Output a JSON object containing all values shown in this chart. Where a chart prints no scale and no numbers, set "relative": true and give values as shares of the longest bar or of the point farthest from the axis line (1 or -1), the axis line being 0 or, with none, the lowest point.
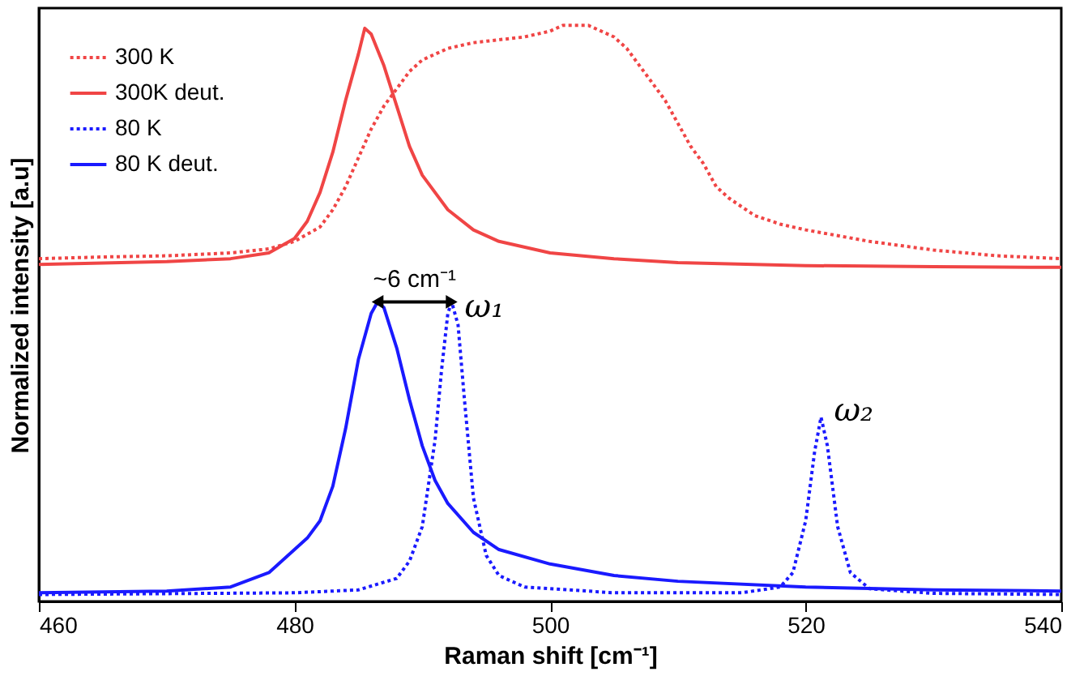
{
  "chart_data": {
    "type": "line",
    "relative": true,
    "xlabel": "Raman shift [cm⁻¹]",
    "ylabel": "Normalized intensity [a.u]",
    "xlim": [
      460,
      540
    ],
    "xticks": [
      460,
      480,
      500,
      520,
      540
    ],
    "grid": false,
    "legend": "top left",
    "marker": "none",
    "annotations": [
      "~6 cm⁻¹",
      {
        "text": "ω₁",
        "x": 492.3,
        "y": 0.5
      },
      {
        "text": "ω₂",
        "x": 521.2,
        "y": 0.32
      }
    ],
    "series": [
      {
        "name": "300 K",
        "color": "#f04545",
        "line_style": "dotted",
        "x": [
          460,
          465,
          470,
          475,
          478,
          480,
          482,
          483,
          484,
          485,
          486,
          487,
          488,
          489,
          490,
          492,
          494,
          496,
          498,
          500,
          501,
          503,
          505,
          506,
          507,
          508,
          509,
          510,
          511,
          512,
          513,
          514,
          516,
          518,
          520,
          525,
          530,
          535,
          540
        ],
        "values": [
          0.595,
          0.598,
          0.6,
          0.605,
          0.612,
          0.625,
          0.65,
          0.68,
          0.72,
          0.77,
          0.82,
          0.86,
          0.89,
          0.92,
          0.94,
          0.96,
          0.97,
          0.975,
          0.98,
          0.99,
          1.0,
          1.0,
          0.98,
          0.96,
          0.93,
          0.9,
          0.87,
          0.83,
          0.79,
          0.76,
          0.72,
          0.7,
          0.67,
          0.655,
          0.645,
          0.625,
          0.61,
          0.6,
          0.595
        ]
      },
      {
        "name": "300K deut.",
        "color": "#f04545",
        "line_style": "solid",
        "x": [
          460,
          470,
          475,
          478,
          480,
          481,
          482,
          483,
          484,
          485,
          485.5,
          486,
          487,
          488,
          489,
          490,
          492,
          494,
          496,
          500,
          505,
          510,
          520,
          530,
          540
        ],
        "values": [
          0.585,
          0.59,
          0.595,
          0.605,
          0.63,
          0.66,
          0.71,
          0.78,
          0.87,
          0.95,
          0.995,
          0.985,
          0.93,
          0.86,
          0.79,
          0.74,
          0.68,
          0.645,
          0.625,
          0.605,
          0.595,
          0.588,
          0.583,
          0.581,
          0.58
        ]
      },
      {
        "name": "80 K",
        "color": "#1a1aff",
        "line_style": "dotted",
        "x": [
          460,
          480,
          485,
          488,
          489,
          490,
          491,
          491.5,
          492,
          492.3,
          492.8,
          493.3,
          494,
          495,
          496,
          498,
          505,
          515,
          518,
          519,
          520,
          520.7,
          521.2,
          521.7,
          522.5,
          523.5,
          525,
          530,
          540
        ],
        "values": [
          0.012,
          0.015,
          0.02,
          0.04,
          0.07,
          0.13,
          0.28,
          0.4,
          0.5,
          0.52,
          0.48,
          0.35,
          0.18,
          0.08,
          0.045,
          0.025,
          0.015,
          0.015,
          0.025,
          0.05,
          0.14,
          0.26,
          0.32,
          0.27,
          0.13,
          0.05,
          0.022,
          0.014,
          0.012
        ]
      },
      {
        "name": "80 K deut.",
        "color": "#1a1aff",
        "line_style": "solid",
        "x": [
          460,
          470,
          475,
          478,
          480,
          481,
          482,
          483,
          484,
          485,
          486,
          486.5,
          487,
          488,
          489,
          490,
          491,
          492,
          494,
          496,
          500,
          505,
          510,
          520,
          530,
          540
        ],
        "values": [
          0.015,
          0.018,
          0.025,
          0.05,
          0.09,
          0.11,
          0.14,
          0.2,
          0.3,
          0.42,
          0.5,
          0.52,
          0.51,
          0.44,
          0.35,
          0.27,
          0.21,
          0.17,
          0.12,
          0.09,
          0.065,
          0.045,
          0.035,
          0.025,
          0.02,
          0.018
        ]
      }
    ]
  }
}
